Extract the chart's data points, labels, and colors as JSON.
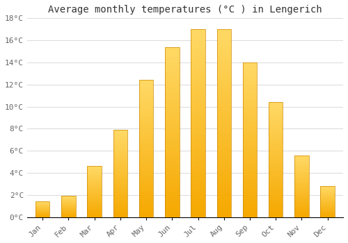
{
  "title": "Average monthly temperatures (°C ) in Lengerich",
  "months": [
    "Jan",
    "Feb",
    "Mar",
    "Apr",
    "May",
    "Jun",
    "Jul",
    "Aug",
    "Sep",
    "Oct",
    "Nov",
    "Dec"
  ],
  "temperatures": [
    1.4,
    1.9,
    4.6,
    7.9,
    12.4,
    15.4,
    17.0,
    17.0,
    14.0,
    10.4,
    5.6,
    2.8
  ],
  "bar_color_bottom": "#F5A800",
  "bar_color_top": "#FFD966",
  "background_color": "#FFFFFF",
  "grid_color": "#DDDDDD",
  "ylim": [
    0,
    18
  ],
  "yticks": [
    0,
    2,
    4,
    6,
    8,
    10,
    12,
    14,
    16,
    18
  ],
  "title_fontsize": 10,
  "tick_fontsize": 8,
  "fig_bg_color": "#FFFFFF"
}
